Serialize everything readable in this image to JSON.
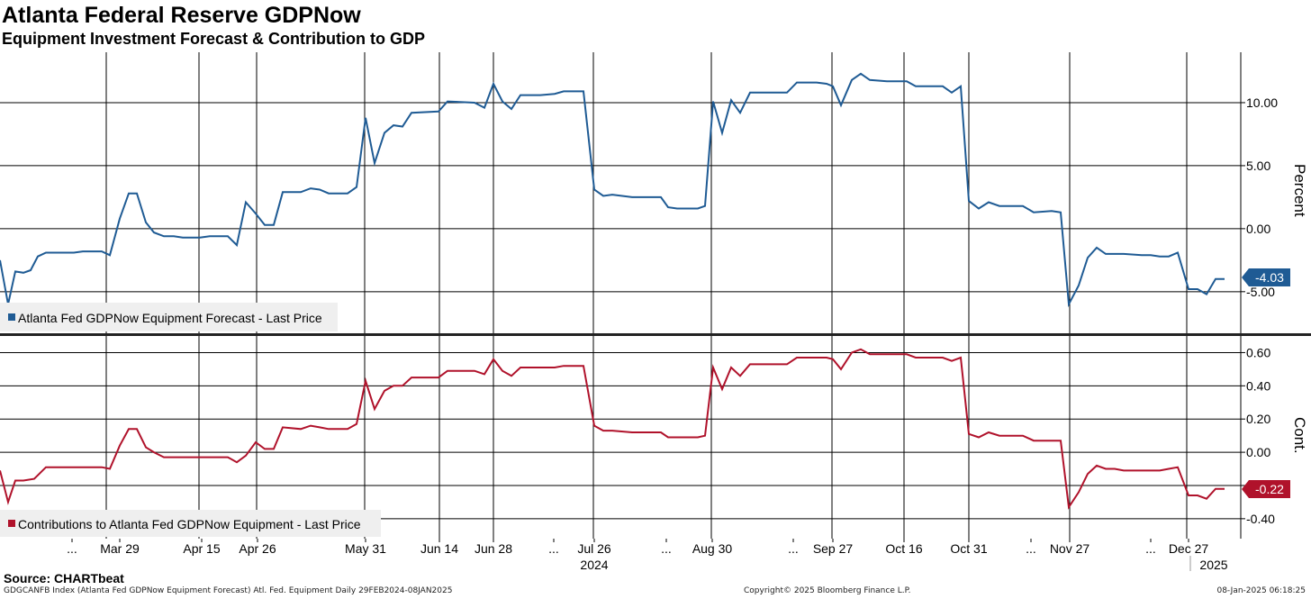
{
  "title": "Atlanta Federal Reserve GDPNow",
  "subtitle": "Equipment Investment Forecast & Contribution to GDP",
  "source": "Source: CHARTbeat",
  "footer": {
    "left": "GDGCANFB Index (Atlanta Fed GDPNow Equipment Forecast) Atl. Fed. Equipment  Daily 29FEB2024-08JAN2025",
    "center": "Copyright© 2025 Bloomberg Finance L.P.",
    "right": "08-Jan-2025 06:18:25"
  },
  "colors": {
    "forecast": "#1f5b94",
    "contribution": "#b0122b",
    "grid": "#000000"
  },
  "chart_data": [
    {
      "type": "line",
      "ylabel": "Percent",
      "y_ticks": [
        "10.00",
        "5.00",
        "0.00",
        "-5.00"
      ],
      "y_tick_values": [
        10,
        5,
        0,
        -5
      ],
      "ylim": [
        -8.3,
        14
      ],
      "legend": "Atlanta Fed GDPNow Equipment Forecast - Last Price",
      "last_value_label": "-4.03",
      "series": [
        {
          "name": "Atlanta Fed GDPNow Equipment Forecast - Last Price",
          "color": "#1f5b94",
          "points": [
            [
              0,
              -2.5
            ],
            [
              9,
              -6.0
            ],
            [
              17,
              -3.4
            ],
            [
              26,
              -3.5
            ],
            [
              34,
              -3.3
            ],
            [
              42,
              -2.2
            ],
            [
              51,
              -1.9
            ],
            [
              82,
              -1.9
            ],
            [
              92,
              -1.8
            ],
            [
              113,
              -1.8
            ],
            [
              122,
              -2.1
            ],
            [
              133,
              0.8
            ],
            [
              143,
              2.8
            ],
            [
              152,
              2.8
            ],
            [
              162,
              0.5
            ],
            [
              171,
              -0.3
            ],
            [
              182,
              -0.6
            ],
            [
              193,
              -0.6
            ],
            [
              203,
              -0.7
            ],
            [
              222,
              -0.7
            ],
            [
              233,
              -0.6
            ],
            [
              253,
              -0.6
            ],
            [
              263,
              -1.3
            ],
            [
              273,
              2.1
            ],
            [
              284,
              1.2
            ],
            [
              294,
              0.3
            ],
            [
              304,
              0.3
            ],
            [
              314,
              2.9
            ],
            [
              334,
              2.9
            ],
            [
              345,
              3.2
            ],
            [
              355,
              3.1
            ],
            [
              365,
              2.8
            ],
            [
              386,
              2.8
            ],
            [
              396,
              3.3
            ],
            [
              406,
              8.8
            ],
            [
              416,
              5.2
            ],
            [
              427,
              7.6
            ],
            [
              437,
              8.2
            ],
            [
              447,
              8.1
            ],
            [
              457,
              9.2
            ],
            [
              487,
              9.3
            ],
            [
              497,
              10.1
            ],
            [
              527,
              10.0
            ],
            [
              538,
              9.6
            ],
            [
              548,
              11.5
            ],
            [
              558,
              10.1
            ],
            [
              568,
              9.5
            ],
            [
              578,
              10.6
            ],
            [
              600,
              10.6
            ],
            [
              616,
              10.7
            ],
            [
              626,
              10.9
            ],
            [
              648,
              10.9
            ],
            [
              660,
              3.1
            ],
            [
              670,
              2.6
            ],
            [
              680,
              2.7
            ],
            [
              702,
              2.5
            ],
            [
              734,
              2.5
            ],
            [
              742,
              1.7
            ],
            [
              752,
              1.6
            ],
            [
              775,
              1.6
            ],
            [
              783,
              1.8
            ],
            [
              792,
              10.1
            ],
            [
              802,
              7.6
            ],
            [
              812,
              10.2
            ],
            [
              822,
              9.2
            ],
            [
              833,
              10.8
            ],
            [
              853,
              10.8
            ],
            [
              874,
              10.8
            ],
            [
              885,
              11.6
            ],
            [
              907,
              11.6
            ],
            [
              918,
              11.5
            ],
            [
              925,
              11.3
            ],
            [
              934,
              9.8
            ],
            [
              946,
              11.8
            ],
            [
              956,
              12.3
            ],
            [
              966,
              11.8
            ],
            [
              985,
              11.7
            ],
            [
              1007,
              11.7
            ],
            [
              1017,
              11.3
            ],
            [
              1047,
              11.3
            ],
            [
              1057,
              10.8
            ],
            [
              1067,
              11.3
            ],
            [
              1076,
              2.2
            ],
            [
              1087,
              1.6
            ],
            [
              1098,
              2.1
            ],
            [
              1110,
              1.8
            ],
            [
              1136,
              1.8
            ],
            [
              1148,
              1.3
            ],
            [
              1168,
              1.4
            ],
            [
              1178,
              1.3
            ],
            [
              1187,
              -6.0
            ],
            [
              1198,
              -4.5
            ],
            [
              1208,
              -2.3
            ],
            [
              1218,
              -1.5
            ],
            [
              1228,
              -2.0
            ],
            [
              1238,
              -2.0
            ],
            [
              1248,
              -2.0
            ],
            [
              1268,
              -2.1
            ],
            [
              1278,
              -2.1
            ],
            [
              1288,
              -2.2
            ],
            [
              1298,
              -2.2
            ],
            [
              1308,
              -1.9
            ],
            [
              1320,
              -4.8
            ],
            [
              1330,
              -4.8
            ],
            [
              1340,
              -5.2
            ],
            [
              1350,
              -4.0
            ],
            [
              1360,
              -4.0
            ]
          ]
        }
      ]
    },
    {
      "type": "line",
      "ylabel": "Cont.",
      "y_ticks": [
        "0.60",
        "0.40",
        "0.20",
        "0.00",
        "-0.20",
        "-0.40"
      ],
      "y_tick_values": [
        0.6,
        0.4,
        0.2,
        0,
        -0.2,
        -0.4
      ],
      "ylim": [
        -0.52,
        0.7
      ],
      "legend": "Contributions to Atlanta Fed GDPNow Equipment - Last Price",
      "last_value_label": "-0.22",
      "series": [
        {
          "name": "Contributions to Atlanta Fed GDPNow Equipment - Last Price",
          "color": "#b0122b",
          "points": [
            [
              0,
              -0.11
            ],
            [
              9,
              -0.3
            ],
            [
              17,
              -0.17
            ],
            [
              26,
              -0.17
            ],
            [
              38,
              -0.16
            ],
            [
              51,
              -0.09
            ],
            [
              82,
              -0.09
            ],
            [
              92,
              -0.09
            ],
            [
              113,
              -0.09
            ],
            [
              122,
              -0.1
            ],
            [
              133,
              0.04
            ],
            [
              143,
              0.14
            ],
            [
              152,
              0.14
            ],
            [
              162,
              0.03
            ],
            [
              171,
              0.0
            ],
            [
              182,
              -0.03
            ],
            [
              193,
              -0.03
            ],
            [
              203,
              -0.03
            ],
            [
              222,
              -0.03
            ],
            [
              233,
              -0.03
            ],
            [
              253,
              -0.03
            ],
            [
              263,
              -0.06
            ],
            [
              273,
              -0.02
            ],
            [
              284,
              0.06
            ],
            [
              294,
              0.02
            ],
            [
              304,
              0.02
            ],
            [
              314,
              0.15
            ],
            [
              334,
              0.14
            ],
            [
              345,
              0.16
            ],
            [
              355,
              0.15
            ],
            [
              365,
              0.14
            ],
            [
              386,
              0.14
            ],
            [
              396,
              0.17
            ],
            [
              406,
              0.43
            ],
            [
              416,
              0.26
            ],
            [
              427,
              0.37
            ],
            [
              437,
              0.4
            ],
            [
              447,
              0.4
            ],
            [
              457,
              0.45
            ],
            [
              487,
              0.45
            ],
            [
              497,
              0.49
            ],
            [
              527,
              0.49
            ],
            [
              538,
              0.47
            ],
            [
              548,
              0.56
            ],
            [
              558,
              0.49
            ],
            [
              568,
              0.46
            ],
            [
              578,
              0.51
            ],
            [
              600,
              0.51
            ],
            [
              616,
              0.51
            ],
            [
              626,
              0.52
            ],
            [
              648,
              0.52
            ],
            [
              660,
              0.16
            ],
            [
              670,
              0.13
            ],
            [
              680,
              0.13
            ],
            [
              702,
              0.12
            ],
            [
              734,
              0.12
            ],
            [
              742,
              0.09
            ],
            [
              752,
              0.09
            ],
            [
              775,
              0.09
            ],
            [
              783,
              0.1
            ],
            [
              792,
              0.51
            ],
            [
              802,
              0.38
            ],
            [
              812,
              0.51
            ],
            [
              822,
              0.46
            ],
            [
              833,
              0.53
            ],
            [
              853,
              0.53
            ],
            [
              874,
              0.53
            ],
            [
              885,
              0.57
            ],
            [
              907,
              0.57
            ],
            [
              918,
              0.57
            ],
            [
              925,
              0.56
            ],
            [
              934,
              0.5
            ],
            [
              946,
              0.6
            ],
            [
              956,
              0.62
            ],
            [
              966,
              0.59
            ],
            [
              985,
              0.59
            ],
            [
              1007,
              0.59
            ],
            [
              1017,
              0.57
            ],
            [
              1047,
              0.57
            ],
            [
              1057,
              0.55
            ],
            [
              1067,
              0.57
            ],
            [
              1076,
              0.11
            ],
            [
              1087,
              0.09
            ],
            [
              1098,
              0.12
            ],
            [
              1110,
              0.1
            ],
            [
              1136,
              0.1
            ],
            [
              1148,
              0.07
            ],
            [
              1168,
              0.07
            ],
            [
              1178,
              0.07
            ],
            [
              1187,
              -0.33
            ],
            [
              1198,
              -0.24
            ],
            [
              1208,
              -0.13
            ],
            [
              1218,
              -0.08
            ],
            [
              1228,
              -0.1
            ],
            [
              1238,
              -0.1
            ],
            [
              1248,
              -0.11
            ],
            [
              1268,
              -0.11
            ],
            [
              1278,
              -0.11
            ],
            [
              1288,
              -0.11
            ],
            [
              1298,
              -0.1
            ],
            [
              1308,
              -0.09
            ],
            [
              1320,
              -0.26
            ],
            [
              1330,
              -0.26
            ],
            [
              1340,
              -0.28
            ],
            [
              1350,
              -0.22
            ],
            [
              1360,
              -0.22
            ]
          ]
        }
      ]
    }
  ],
  "x_axis": {
    "x_range": [
      0,
      1378
    ],
    "gridlines": [
      118,
      221,
      285,
      405,
      488,
      548,
      659,
      790,
      924,
      1004,
      1076,
      1188,
      1318
    ],
    "labels": [
      {
        "text": "...",
        "x": 80
      },
      {
        "text": "Mar 29",
        "x": 133
      },
      {
        "text": "Apr 15",
        "x": 224
      },
      {
        "text": "Apr 26",
        "x": 286
      },
      {
        "text": "May 31",
        "x": 406
      },
      {
        "text": "Jun 14",
        "x": 488
      },
      {
        "text": "Jun 28",
        "x": 548
      },
      {
        "text": "...",
        "x": 615
      },
      {
        "text": "Jul 26",
        "x": 660
      },
      {
        "text": "...",
        "x": 740
      },
      {
        "text": "Aug 30",
        "x": 791
      },
      {
        "text": "...",
        "x": 881
      },
      {
        "text": "Sep 27",
        "x": 925
      },
      {
        "text": "Oct 16",
        "x": 1004
      },
      {
        "text": "Oct 31",
        "x": 1076
      },
      {
        "text": "...",
        "x": 1145
      },
      {
        "text": "Nov 27",
        "x": 1188
      },
      {
        "text": "...",
        "x": 1278
      },
      {
        "text": "Dec 27",
        "x": 1320
      }
    ],
    "years": [
      {
        "text": "2024",
        "x": 660
      },
      {
        "text": "2025",
        "x": 1348
      }
    ]
  }
}
